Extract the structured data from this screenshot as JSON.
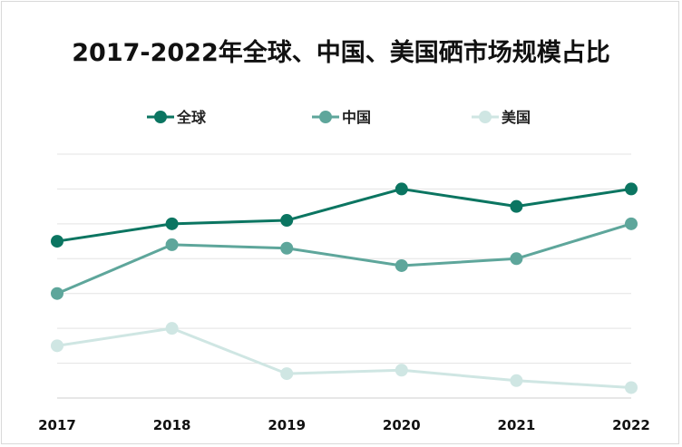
{
  "chart_data": {
    "type": "line",
    "title": "2017-2022年全球、中国、美国硒市场规模占比",
    "x": [
      "2017",
      "2018",
      "2019",
      "2020",
      "2021",
      "2022"
    ],
    "ylim": [
      0,
      7
    ],
    "grid": true,
    "legend_position": "top",
    "series": [
      {
        "name": "全球",
        "color": "#0b7561",
        "values": [
          4.5,
          5.0,
          5.1,
          6.0,
          5.5,
          6.0
        ]
      },
      {
        "name": "中国",
        "color": "#5ea69b",
        "values": [
          3.0,
          4.4,
          4.3,
          3.8,
          4.0,
          5.0
        ]
      },
      {
        "name": "美国",
        "color": "#cfe6e3",
        "values": [
          1.5,
          2.0,
          0.7,
          0.8,
          0.5,
          0.3
        ]
      }
    ]
  }
}
